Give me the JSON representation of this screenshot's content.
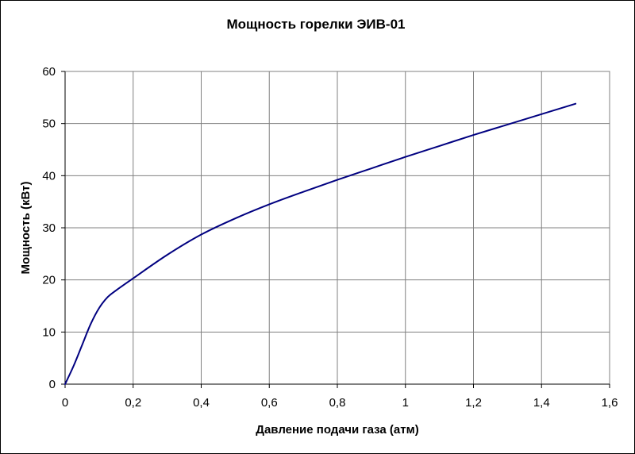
{
  "chart_data": {
    "type": "line",
    "title": "Мощность горелки ЭИВ-01",
    "xlabel": "Давление подачи газа (атм)",
    "ylabel": "Мощность (кВт)",
    "xlim": [
      0,
      1.6
    ],
    "ylim": [
      0,
      60
    ],
    "x_ticks": [
      0,
      0.2,
      0.4,
      0.6,
      0.8,
      1.0,
      1.2,
      1.4,
      1.6
    ],
    "x_tick_labels": [
      "0",
      "0,2",
      "0,4",
      "0,6",
      "0,8",
      "1",
      "1,2",
      "1,4",
      "1,6"
    ],
    "y_ticks": [
      0,
      10,
      20,
      30,
      40,
      50,
      60
    ],
    "y_tick_labels": [
      "0",
      "10",
      "20",
      "30",
      "40",
      "50",
      "60"
    ],
    "grid": true,
    "series": [
      {
        "color": "#000080",
        "x": [
          0,
          0.025,
          0.05,
          0.075,
          0.1,
          0.125,
          0.15,
          0.2,
          0.3,
          0.4,
          0.5,
          0.6,
          0.7,
          0.8,
          0.9,
          1.0,
          1.1,
          1.2,
          1.3,
          1.4,
          1.5
        ],
        "y": [
          0,
          3.5,
          7.5,
          11.5,
          14.6,
          16.7,
          18.0,
          20.3,
          24.8,
          28.7,
          31.8,
          34.5,
          36.9,
          39.2,
          41.4,
          43.6,
          45.7,
          47.8,
          49.8,
          51.8,
          53.8
        ]
      }
    ]
  }
}
